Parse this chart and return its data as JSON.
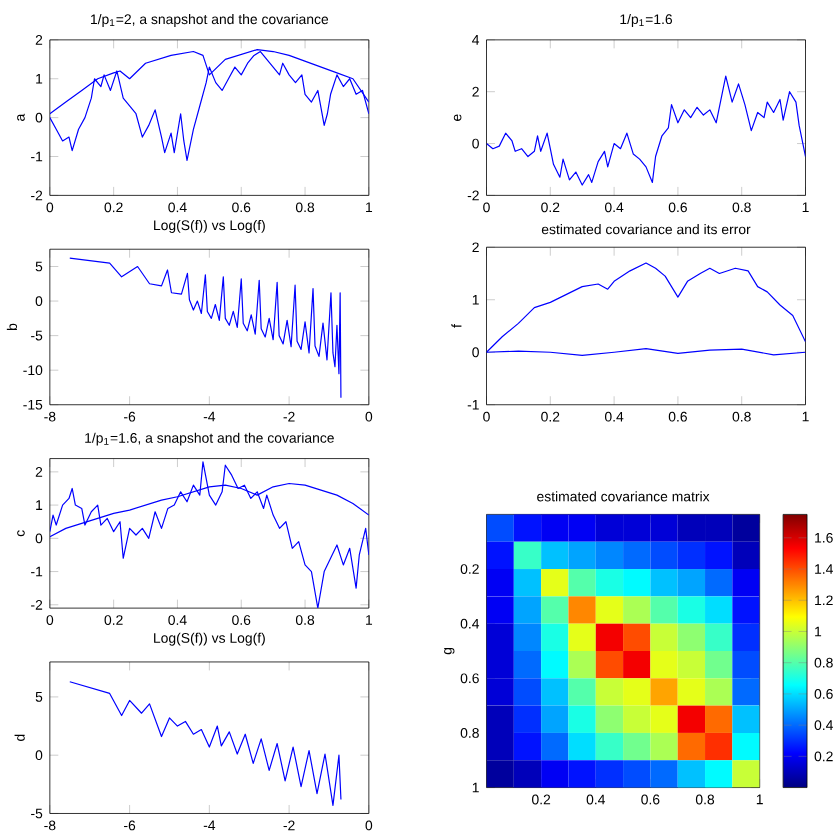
{
  "chart_data": [
    {
      "type": "line",
      "title": "1/p$_{1}$=2, a snapshot and the covariance",
      "xlabel": "Log(S(f)) vs Log(f)",
      "ylabel": "a",
      "xlim": [
        0,
        1
      ],
      "ylim": [
        -2,
        2
      ],
      "xticks": [
        0,
        0.2,
        0.4,
        0.6,
        0.8,
        1
      ],
      "yticks": [
        -2,
        -1,
        0,
        1,
        2
      ],
      "series": [
        {
          "color": "#0000ff",
          "x": [
            0,
            0.02,
            0.04,
            0.06,
            0.07,
            0.09,
            0.11,
            0.13,
            0.14,
            0.16,
            0.17,
            0.19,
            0.21,
            0.23,
            0.25,
            0.27,
            0.29,
            0.31,
            0.33,
            0.35,
            0.36,
            0.38,
            0.39,
            0.41,
            0.42,
            0.43,
            0.45,
            0.47,
            0.49,
            0.5,
            0.52,
            0.54,
            0.56,
            0.58,
            0.6,
            0.62,
            0.64,
            0.66,
            0.68,
            0.7,
            0.72,
            0.73,
            0.75,
            0.77,
            0.79,
            0.8,
            0.82,
            0.84,
            0.86,
            0.87,
            0.88,
            0.9,
            0.92,
            0.94,
            0.96,
            0.98,
            1.0
          ],
          "values": [
            0,
            -0.3,
            -0.6,
            -0.5,
            -0.85,
            -0.3,
            0,
            0.5,
            1.0,
            0.8,
            1.1,
            0.7,
            1.2,
            0.5,
            0.3,
            0.1,
            -0.5,
            -0.2,
            0.2,
            -0.5,
            -0.9,
            -0.4,
            -0.9,
            0.1,
            -0.6,
            -1.1,
            -0.3,
            0.3,
            0.9,
            1.3,
            0.9,
            0.7,
            1.0,
            1.3,
            1.1,
            1.4,
            1.6,
            1.7,
            1.5,
            1.3,
            1.1,
            1.4,
            1.1,
            0.9,
            1.1,
            0.6,
            0.4,
            0.7,
            -0.2,
            0.1,
            0.6,
            1.1,
            0.8,
            1.0,
            0.6,
            0.7,
            0.1
          ]
        },
        {
          "color": "#0000ff",
          "x": [
            0,
            0.05,
            0.1,
            0.15,
            0.2,
            0.22,
            0.25,
            0.3,
            0.38,
            0.45,
            0.48,
            0.5,
            0.55,
            0.65,
            0.7,
            0.75,
            0.85,
            0.9,
            0.95,
            1.0
          ],
          "values": [
            0.1,
            0.4,
            0.7,
            1.0,
            1.15,
            1.2,
            1.0,
            1.4,
            1.6,
            1.7,
            1.6,
            1.1,
            1.5,
            1.75,
            1.7,
            1.6,
            1.3,
            1.15,
            1.0,
            0.4
          ]
        }
      ]
    },
    {
      "type": "line",
      "title": "1/p$_{1}$=1.6",
      "ylabel": "e",
      "xlim": [
        0,
        1
      ],
      "ylim": [
        -2,
        4
      ],
      "xticks": [
        0,
        0.2,
        0.4,
        0.6,
        0.8,
        1
      ],
      "yticks": [
        -2,
        0,
        2,
        4
      ],
      "series": [
        {
          "color": "#0000ff",
          "x": [
            0,
            0.02,
            0.04,
            0.06,
            0.08,
            0.09,
            0.11,
            0.13,
            0.15,
            0.16,
            0.17,
            0.19,
            0.2,
            0.21,
            0.23,
            0.24,
            0.26,
            0.28,
            0.3,
            0.32,
            0.33,
            0.35,
            0.37,
            0.38,
            0.4,
            0.42,
            0.44,
            0.46,
            0.48,
            0.5,
            0.52,
            0.53,
            0.55,
            0.57,
            0.58,
            0.6,
            0.62,
            0.64,
            0.66,
            0.68,
            0.7,
            0.72,
            0.74,
            0.75,
            0.77,
            0.79,
            0.81,
            0.83,
            0.85,
            0.87,
            0.88,
            0.9,
            0.92,
            0.93,
            0.95,
            0.97,
            0.98,
            1.0
          ],
          "values": [
            0,
            -0.2,
            -0.1,
            0.4,
            0.1,
            -0.3,
            -0.2,
            -0.5,
            -0.3,
            0.3,
            -0.3,
            0.4,
            -0.2,
            -0.8,
            -1.3,
            -0.6,
            -1.4,
            -1.1,
            -1.6,
            -1.2,
            -1.5,
            -0.7,
            -0.3,
            -0.9,
            0.0,
            -0.2,
            0.4,
            -0.4,
            -0.6,
            -0.9,
            -1.5,
            -0.5,
            0.3,
            0.6,
            1.5,
            0.8,
            1.3,
            1.0,
            1.4,
            1.1,
            1.3,
            0.8,
            2.0,
            2.6,
            1.6,
            2.3,
            1.5,
            0.5,
            1.2,
            1.0,
            1.6,
            1.2,
            1.7,
            0.9,
            2.0,
            1.6,
            0.7,
            -0.5
          ]
        }
      ]
    },
    {
      "type": "line",
      "ylabel": "b",
      "xlim": [
        -8,
        0
      ],
      "ylim": [
        -15,
        7.5
      ],
      "xticks": [
        -8,
        -6,
        -4,
        -2,
        0
      ],
      "yticks": [
        -15,
        -10,
        -5,
        0,
        5
      ],
      "series": [
        {
          "color": "#0000ff",
          "x": [
            -7.5,
            -6.5,
            -6.2,
            -5.8,
            -5.5,
            -5.2,
            -5.05,
            -4.95,
            -4.7,
            -4.55,
            -4.5,
            -4.4,
            -4.3,
            -4.2,
            -4.1,
            -4.05,
            -3.95,
            -3.85,
            -3.75,
            -3.65,
            -3.6,
            -3.5,
            -3.4,
            -3.3,
            -3.2,
            -3.15,
            -3.05,
            -2.95,
            -2.85,
            -2.75,
            -2.7,
            -2.6,
            -2.5,
            -2.4,
            -2.3,
            -2.25,
            -2.15,
            -2.05,
            -1.95,
            -1.85,
            -1.8,
            -1.7,
            -1.6,
            -1.5,
            -1.4,
            -1.35,
            -1.25,
            -1.15,
            -1.05,
            -0.95,
            -0.9,
            -0.85,
            -0.8,
            -0.75,
            -0.72,
            -0.7
          ],
          "values": [
            6.2,
            5.5,
            3.5,
            5.0,
            2.5,
            2.2,
            4.5,
            1.2,
            1.0,
            4.0,
            0.2,
            -1.3,
            0.0,
            -1.8,
            3.8,
            -1.5,
            -2.5,
            -0.5,
            -2.8,
            3.5,
            -2.5,
            -3.5,
            -1.5,
            -3.8,
            3.2,
            -3.2,
            -4.3,
            -2,
            -4.8,
            3.0,
            -4,
            -5.2,
            -2.5,
            -5.6,
            2.7,
            -5,
            -6.2,
            -2.8,
            -6.6,
            2.3,
            -5.8,
            -7,
            -3,
            -7.5,
            1.8,
            -6.5,
            -8,
            -3.2,
            -8.5,
            1.2,
            -7.5,
            -9.5,
            -3.5,
            -10.5,
            1.2,
            -14
          ]
        }
      ]
    },
    {
      "type": "line",
      "title": "estimated covariance and its error",
      "ylabel": "f",
      "xlim": [
        0,
        1
      ],
      "ylim": [
        -1,
        2
      ],
      "xticks": [
        0,
        0.2,
        0.4,
        0.6,
        0.8,
        1
      ],
      "yticks": [
        -1,
        0,
        1,
        2
      ],
      "series": [
        {
          "color": "#0000ff",
          "x": [
            0,
            0.05,
            0.1,
            0.15,
            0.2,
            0.25,
            0.3,
            0.35,
            0.38,
            0.4,
            0.45,
            0.5,
            0.53,
            0.56,
            0.6,
            0.63,
            0.67,
            0.7,
            0.73,
            0.78,
            0.82,
            0.85,
            0.88,
            0.92,
            0.96,
            1.0
          ],
          "values": [
            0,
            0.3,
            0.55,
            0.85,
            0.95,
            1.1,
            1.25,
            1.3,
            1.2,
            1.35,
            1.55,
            1.7,
            1.6,
            1.45,
            1.05,
            1.35,
            1.5,
            1.6,
            1.5,
            1.6,
            1.55,
            1.25,
            1.15,
            0.9,
            0.7,
            0.2
          ]
        },
        {
          "color": "#0000ff",
          "x": [
            0,
            0.1,
            0.2,
            0.3,
            0.4,
            0.5,
            0.6,
            0.7,
            0.8,
            0.9,
            1.0
          ],
          "values": [
            0,
            0.02,
            0.0,
            -0.06,
            0.0,
            0.07,
            -0.02,
            0.04,
            0.06,
            -0.05,
            0.0
          ]
        }
      ]
    },
    {
      "type": "line",
      "title": "1/p$_{1}$=1.6, a snapshot and the covariance",
      "xlabel": "Log(S(f)) vs Log(f)",
      "ylabel": "c",
      "xlim": [
        0,
        1
      ],
      "ylim": [
        -2.1,
        2.4
      ],
      "xticks": [
        0,
        0.2,
        0.4,
        0.6,
        0.8,
        1
      ],
      "yticks": [
        -2,
        -1,
        0,
        1,
        2
      ],
      "series": [
        {
          "color": "#0000ff",
          "x": [
            0,
            0.01,
            0.02,
            0.04,
            0.06,
            0.07,
            0.08,
            0.1,
            0.11,
            0.13,
            0.15,
            0.16,
            0.18,
            0.2,
            0.22,
            0.23,
            0.25,
            0.27,
            0.29,
            0.31,
            0.33,
            0.35,
            0.37,
            0.39,
            0.41,
            0.43,
            0.45,
            0.47,
            0.48,
            0.5,
            0.52,
            0.54,
            0.55,
            0.57,
            0.59,
            0.61,
            0.63,
            0.65,
            0.67,
            0.68,
            0.7,
            0.72,
            0.74,
            0.76,
            0.78,
            0.8,
            0.82,
            0.84,
            0.86,
            0.88,
            0.9,
            0.92,
            0.94,
            0.96,
            0.97,
            0.99,
            1.0
          ],
          "values": [
            0.2,
            0.7,
            0.4,
            1.0,
            1.2,
            1.5,
            1.0,
            0.9,
            0.4,
            0.8,
            1.0,
            0.4,
            0.6,
            0.2,
            0.5,
            -0.6,
            0.3,
            0.1,
            0.3,
            0.0,
            0.8,
            0.3,
            0.9,
            1.0,
            1.4,
            1.1,
            1.6,
            1.3,
            2.3,
            1.3,
            1.0,
            1.4,
            2.2,
            1.9,
            1.5,
            1.6,
            1.2,
            1.4,
            0.9,
            1.3,
            0.7,
            0.3,
            0.5,
            -0.3,
            -0.1,
            -0.8,
            -1.0,
            -2.1,
            -1.0,
            -0.6,
            -0.2,
            -0.8,
            -0.3,
            -1.5,
            -0.5,
            0.3,
            -0.5
          ]
        },
        {
          "color": "#0000ff",
          "x": [
            0,
            0.05,
            0.1,
            0.15,
            0.2,
            0.25,
            0.3,
            0.35,
            0.4,
            0.45,
            0.5,
            0.55,
            0.6,
            0.65,
            0.7,
            0.75,
            0.8,
            0.85,
            0.9,
            0.95,
            1.0
          ],
          "values": [
            0.05,
            0.3,
            0.45,
            0.6,
            0.75,
            0.85,
            1.0,
            1.15,
            1.25,
            1.4,
            1.55,
            1.6,
            1.5,
            1.3,
            1.55,
            1.65,
            1.6,
            1.45,
            1.3,
            1.05,
            0.7
          ]
        }
      ]
    },
    {
      "type": "heatmap",
      "title": "estimated covariance matrix",
      "ylabel": "g",
      "xlim": [
        0,
        1
      ],
      "ylim": [
        1,
        0
      ],
      "xticks": [
        0.2,
        0.4,
        0.6,
        0.8,
        1
      ],
      "yticks": [
        0.2,
        0.4,
        0.6,
        0.8,
        1
      ],
      "clim": [
        0,
        1.75
      ],
      "cticks": [
        0.2,
        0.4,
        0.6,
        0.8,
        1,
        1.2,
        1.4,
        1.6
      ],
      "cells": [
        [
          0.35,
          0.25,
          0.2,
          0.2,
          0.15,
          0.15,
          0.15,
          0.1,
          0.1,
          0.05
        ],
        [
          0.25,
          0.75,
          0.55,
          0.5,
          0.45,
          0.4,
          0.35,
          0.3,
          0.25,
          0.1
        ],
        [
          0.2,
          0.55,
          1.05,
          0.8,
          0.7,
          0.65,
          0.55,
          0.5,
          0.4,
          0.2
        ],
        [
          0.2,
          0.5,
          0.8,
          1.3,
          1.05,
          0.95,
          0.8,
          0.7,
          0.6,
          0.25
        ],
        [
          0.15,
          0.45,
          0.7,
          1.05,
          1.55,
          1.4,
          1.0,
          0.9,
          0.75,
          0.3
        ],
        [
          0.15,
          0.4,
          0.65,
          0.95,
          1.4,
          1.55,
          1.05,
          1.0,
          0.85,
          0.35
        ],
        [
          0.15,
          0.35,
          0.55,
          0.8,
          1.0,
          1.05,
          1.25,
          1.05,
          0.95,
          0.4
        ],
        [
          0.1,
          0.3,
          0.5,
          0.7,
          0.9,
          1.0,
          1.05,
          1.55,
          1.35,
          0.55
        ],
        [
          0.1,
          0.25,
          0.4,
          0.6,
          0.75,
          0.85,
          0.95,
          1.35,
          1.45,
          0.65
        ],
        [
          0.05,
          0.1,
          0.2,
          0.25,
          0.3,
          0.35,
          0.4,
          0.55,
          0.65,
          1.0
        ]
      ]
    },
    {
      "type": "line",
      "ylabel": "d",
      "xlim": [
        -8,
        0
      ],
      "ylim": [
        -5,
        8
      ],
      "xticks": [
        -8,
        -6,
        -4,
        -2,
        0
      ],
      "yticks": [
        -5,
        0,
        5
      ],
      "series": [
        {
          "color": "#0000ff",
          "x": [
            -7.5,
            -6.5,
            -6.2,
            -6.0,
            -5.7,
            -5.5,
            -5.2,
            -5.0,
            -4.8,
            -4.6,
            -4.4,
            -4.2,
            -4.0,
            -3.8,
            -3.7,
            -3.5,
            -3.3,
            -3.1,
            -2.9,
            -2.7,
            -2.5,
            -2.3,
            -2.1,
            -1.9,
            -1.7,
            -1.5,
            -1.3,
            -1.1,
            -0.9,
            -0.75,
            -0.7
          ],
          "values": [
            6.3,
            5.3,
            3.4,
            4.7,
            3.6,
            4.4,
            1.6,
            3.2,
            2.5,
            2.9,
            1.8,
            2.2,
            0.7,
            2.5,
            0.8,
            2.0,
            0.1,
            1.8,
            -0.7,
            1.4,
            -1.3,
            1.0,
            -2.2,
            0.7,
            -2.7,
            0.4,
            -3.3,
            0.1,
            -4.3,
            0.0,
            -3.8
          ]
        }
      ]
    }
  ]
}
